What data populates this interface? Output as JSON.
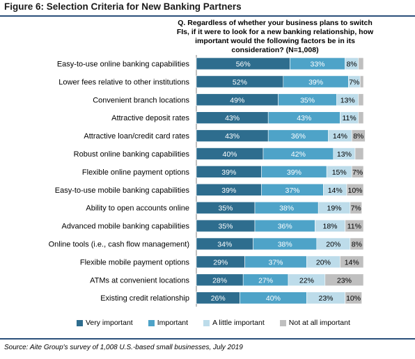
{
  "figure_title": "Figure 6: Selection Criteria for New Banking Partners",
  "question": "Q. Regardless of whether your business plans to switch FIs, if it were to look for a new banking relationship, how important would the following factors be in its consideration? (N=1,008)",
  "source": "Source: Aite Group's survey of 1,008 U.S.-based small businesses, July 2019",
  "chart_data": {
    "type": "bar",
    "orientation": "horizontal",
    "stacked": true,
    "unit": "%",
    "xlim": [
      0,
      100
    ],
    "legend_position": "bottom",
    "categories": [
      "Easy-to-use online banking capabilities",
      "Lower fees relative to other institutions",
      "Convenient branch locations",
      "Attractive deposit rates",
      "Attractive loan/credit card rates",
      "Robust online banking capabilities",
      "Flexible online payment options",
      "Easy-to-use mobile banking capabilities",
      "Ability to open accounts online",
      "Advanced mobile banking capabilities",
      "Online tools (i.e., cash flow management)",
      "Flexible mobile payment options",
      "ATMs at convenient locations",
      "Existing credit relationship"
    ],
    "series": [
      {
        "name": "Very important",
        "color": "#2e6d8e",
        "text_color": "#ffffff",
        "values": [
          56,
          52,
          49,
          43,
          43,
          40,
          39,
          39,
          35,
          35,
          34,
          29,
          28,
          26
        ]
      },
      {
        "name": "Important",
        "color": "#4ea3c8",
        "text_color": "#ffffff",
        "values": [
          33,
          39,
          35,
          43,
          36,
          42,
          39,
          37,
          38,
          36,
          38,
          37,
          27,
          40
        ]
      },
      {
        "name": "A little important",
        "color": "#bddcea",
        "text_color": "#000000",
        "values": [
          8,
          7,
          13,
          11,
          14,
          13,
          15,
          14,
          19,
          18,
          20,
          20,
          22,
          23
        ]
      },
      {
        "name": "Not at all important",
        "color": "#bfbfbf",
        "text_color": "#000000",
        "values": [
          3,
          2,
          3,
          3,
          8,
          5,
          7,
          10,
          7,
          11,
          8,
          14,
          23,
          10
        ]
      }
    ],
    "shown_labels": [
      [
        true,
        true,
        true,
        false
      ],
      [
        true,
        true,
        true,
        false
      ],
      [
        true,
        true,
        true,
        false
      ],
      [
        true,
        true,
        true,
        false
      ],
      [
        true,
        true,
        true,
        true
      ],
      [
        true,
        true,
        true,
        false
      ],
      [
        true,
        true,
        true,
        true
      ],
      [
        true,
        true,
        true,
        true
      ],
      [
        true,
        true,
        true,
        true
      ],
      [
        true,
        true,
        true,
        true
      ],
      [
        true,
        true,
        true,
        true
      ],
      [
        true,
        true,
        true,
        true
      ],
      [
        true,
        true,
        true,
        true
      ],
      [
        true,
        true,
        true,
        true
      ]
    ]
  }
}
